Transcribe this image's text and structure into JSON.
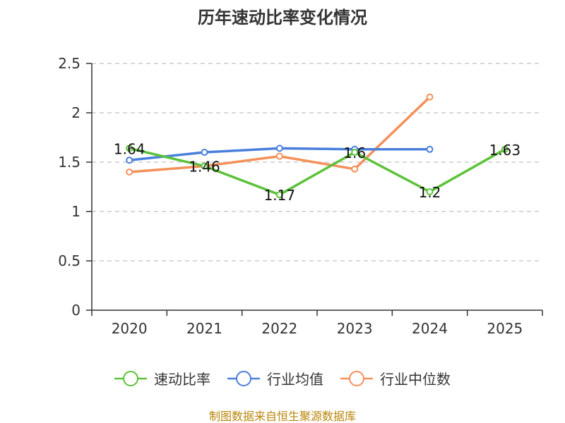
{
  "chart_data": {
    "type": "line",
    "title": "历年速动比率变化情况",
    "categories": [
      "2020",
      "2021",
      "2022",
      "2023",
      "2024",
      "2025"
    ],
    "ylim": [
      0,
      2.5
    ],
    "yticks": [
      "0",
      "0.5",
      "1",
      "1.5",
      "2",
      "2.5"
    ],
    "grid": true,
    "legend_position": "bottom",
    "series": [
      {
        "name": "速动比率",
        "color": "#5cc23a",
        "values": [
          1.64,
          1.46,
          1.17,
          1.6,
          1.2,
          1.63
        ],
        "labels": [
          "1.64",
          "1.46",
          "1.17",
          "1.6",
          "1.2",
          "1.63"
        ]
      },
      {
        "name": "行业均值",
        "color": "#4a7fdc",
        "values": [
          1.52,
          1.6,
          1.64,
          1.63,
          1.63,
          null
        ]
      },
      {
        "name": "行业中位数",
        "color": "#f4905a",
        "values": [
          1.4,
          1.46,
          1.56,
          1.43,
          2.16,
          null
        ]
      }
    ],
    "source": "制图数据来自恒生聚源数据库"
  }
}
